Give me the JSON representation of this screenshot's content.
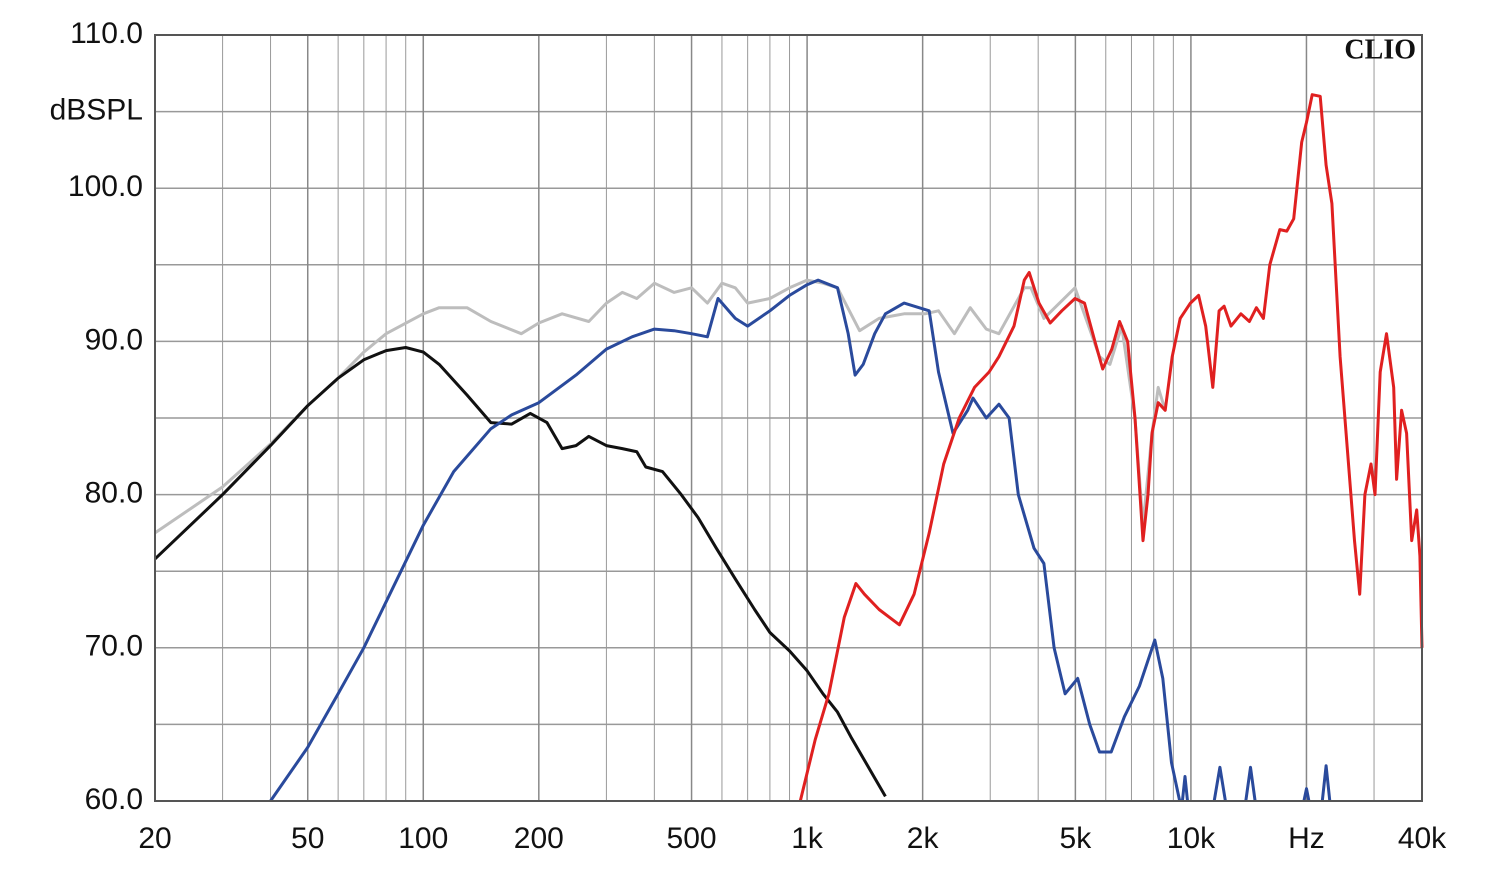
{
  "chart_data": {
    "type": "line",
    "brand": "CLIO",
    "ylabel": "dBSPL",
    "xscale": "log",
    "grid": true,
    "xlim": [
      20,
      40000
    ],
    "ylim": [
      60,
      110
    ],
    "xticks": [
      20,
      50,
      100,
      200,
      500,
      {
        "value": 1000,
        "label": "1k"
      },
      {
        "value": 2000,
        "label": "2k"
      },
      {
        "value": 5000,
        "label": "5k"
      },
      {
        "value": 10000,
        "label": "10k"
      },
      {
        "value": 20000,
        "label": "Hz"
      },
      {
        "value": 40000,
        "label": "40k"
      }
    ],
    "xminor": [
      30,
      40,
      60,
      70,
      80,
      90,
      300,
      400,
      600,
      700,
      800,
      900,
      3000,
      4000,
      6000,
      7000,
      8000,
      9000,
      30000
    ],
    "yticks": [
      {
        "value": 110,
        "label": "110.0"
      },
      {
        "value": 100,
        "label": "100.0"
      },
      {
        "value": 90,
        "label": "90.0"
      },
      {
        "value": 80,
        "label": "80.0"
      },
      {
        "value": 70,
        "label": "70.0"
      },
      {
        "value": 60,
        "label": "60.0"
      }
    ],
    "yminor": [
      105,
      95,
      85,
      75,
      65
    ],
    "series": [
      {
        "color": "#bdbdbd",
        "x": [
          20,
          30,
          40,
          50,
          60,
          70,
          80,
          100,
          110,
          130,
          150,
          180,
          200,
          230,
          270,
          300,
          330,
          360,
          400,
          450,
          500,
          550,
          600,
          650,
          700,
          800,
          900,
          1000,
          1100,
          1200,
          1370,
          1540,
          1790,
          2030,
          2200,
          2420,
          2660,
          2930,
          3160,
          3680,
          3830,
          4140,
          4990,
          5780,
          6150,
          6600,
          7150,
          7500,
          7920,
          8220,
          8570
        ],
        "values": [
          77.5,
          80.5,
          83.3,
          85.8,
          87.6,
          89.3,
          90.5,
          91.8,
          92.2,
          92.2,
          91.3,
          90.5,
          91.2,
          91.8,
          91.3,
          92.5,
          93.2,
          92.8,
          93.8,
          93.2,
          93.5,
          92.5,
          93.8,
          93.5,
          92.5,
          92.8,
          93.5,
          94.0,
          93.8,
          93.5,
          90.7,
          91.5,
          91.8,
          91.8,
          92.0,
          90.5,
          92.2,
          90.8,
          90.5,
          93.5,
          93.5,
          91.5,
          93.5,
          89.0,
          88.5,
          91.0,
          85.0,
          78.0,
          84.0,
          87.0,
          85.5
        ]
      },
      {
        "color": "#111111",
        "x": [
          20,
          30,
          40,
          50,
          60,
          70,
          80,
          90,
          100,
          110,
          130,
          150,
          170,
          190,
          210,
          230,
          250,
          270,
          300,
          330,
          360,
          380,
          420,
          470,
          520,
          580,
          650,
          730,
          800,
          900,
          1000,
          1100,
          1200,
          1300,
          1400,
          1500,
          1600
        ],
        "values": [
          75.8,
          80.0,
          83.2,
          85.8,
          87.6,
          88.8,
          89.4,
          89.6,
          89.3,
          88.5,
          86.5,
          84.7,
          84.6,
          85.3,
          84.7,
          83.0,
          83.2,
          83.8,
          83.2,
          83.0,
          82.8,
          81.8,
          81.5,
          80.0,
          78.5,
          76.5,
          74.5,
          72.5,
          71.0,
          69.8,
          68.5,
          67.0,
          65.8,
          64.2,
          62.8,
          61.5,
          60.3
        ]
      },
      {
        "color": "#2a4a9c",
        "x": [
          40,
          50,
          60,
          70,
          80,
          100,
          120,
          150,
          170,
          200,
          250,
          300,
          350,
          400,
          450,
          500,
          550,
          586,
          650,
          700,
          800,
          900,
          1000,
          1068,
          1200,
          1280,
          1334,
          1400,
          1500,
          1600,
          1790,
          2080,
          2200,
          2400,
          2620,
          2705,
          2930,
          3160,
          3360,
          3550,
          3900,
          4140,
          4400,
          4700,
          5070,
          5450,
          5780,
          6200,
          6710,
          7340,
          8050,
          8450,
          8900,
          9350,
          9400,
          9500,
          9650,
          9800,
          10000,
          11500,
          11900,
          12300,
          13000,
          13900,
          14300,
          14700,
          17000,
          19700,
          20000,
          20300,
          21000,
          22000,
          22500,
          23000
        ],
        "values": [
          60.0,
          63.5,
          67.0,
          70.0,
          73.0,
          78.0,
          81.5,
          84.3,
          85.2,
          86.0,
          87.8,
          89.5,
          90.3,
          90.8,
          90.7,
          90.5,
          90.3,
          92.8,
          91.5,
          91.0,
          92.0,
          93.0,
          93.7,
          94.0,
          93.5,
          90.5,
          87.8,
          88.5,
          90.5,
          91.8,
          92.5,
          92.0,
          88.0,
          84.0,
          85.5,
          86.3,
          85.0,
          85.9,
          85.0,
          80.0,
          76.5,
          75.5,
          70.0,
          67.0,
          68.0,
          65.0,
          63.2,
          63.2,
          65.5,
          67.5,
          70.5,
          68.0,
          62.5,
          60.0,
          null,
          60.0,
          61.6,
          60.0,
          null,
          60.0,
          62.2,
          60.0,
          null,
          60.0,
          62.2,
          60.0,
          null,
          60.0,
          60.8,
          60.0,
          null,
          60.0,
          62.3,
          60.0
        ]
      },
      {
        "color": "#e02020",
        "x": [
          960,
          1050,
          1140,
          1250,
          1340,
          1410,
          1540,
          1740,
          1900,
          2080,
          2270,
          2490,
          2730,
          2980,
          3160,
          3460,
          3680,
          3790,
          4020,
          4300,
          4610,
          4990,
          5280,
          5620,
          5890,
          6220,
          6520,
          6840,
          7150,
          7500,
          7730,
          7920,
          8220,
          8570,
          8940,
          9380,
          9970,
          10470,
          10930,
          11400,
          11840,
          12200,
          12720,
          13500,
          14200,
          14810,
          15450,
          16050,
          17040,
          17770,
          18530,
          19440,
          20000,
          20700,
          21720,
          22500,
          23300,
          24470,
          25560,
          26680,
          27530,
          28400,
          29460,
          30180,
          31130,
          32320,
          33750,
          34350,
          35400,
          36480,
          37600,
          38740,
          39500,
          40000
        ],
        "values": [
          60.0,
          64.0,
          67.0,
          72.0,
          74.2,
          73.5,
          72.5,
          71.5,
          73.5,
          77.5,
          82.0,
          85.0,
          87.0,
          88.0,
          89.0,
          91.0,
          94.0,
          94.5,
          92.5,
          91.2,
          92.0,
          92.8,
          92.5,
          90.0,
          88.2,
          89.5,
          91.3,
          90.0,
          85.0,
          77.0,
          80.0,
          84.0,
          86.0,
          85.5,
          89.0,
          91.5,
          92.5,
          93.0,
          91.0,
          87.0,
          92.0,
          92.3,
          91.0,
          91.8,
          91.3,
          92.2,
          91.5,
          95.0,
          97.3,
          97.2,
          98.0,
          103.0,
          104.3,
          106.1,
          106.0,
          101.5,
          99.0,
          89.0,
          83.0,
          77.0,
          73.5,
          80.0,
          82.0,
          80.0,
          88.0,
          90.5,
          87.0,
          81.0,
          85.5,
          84.0,
          77.0,
          79.0,
          76.0,
          70.0
        ]
      }
    ]
  }
}
